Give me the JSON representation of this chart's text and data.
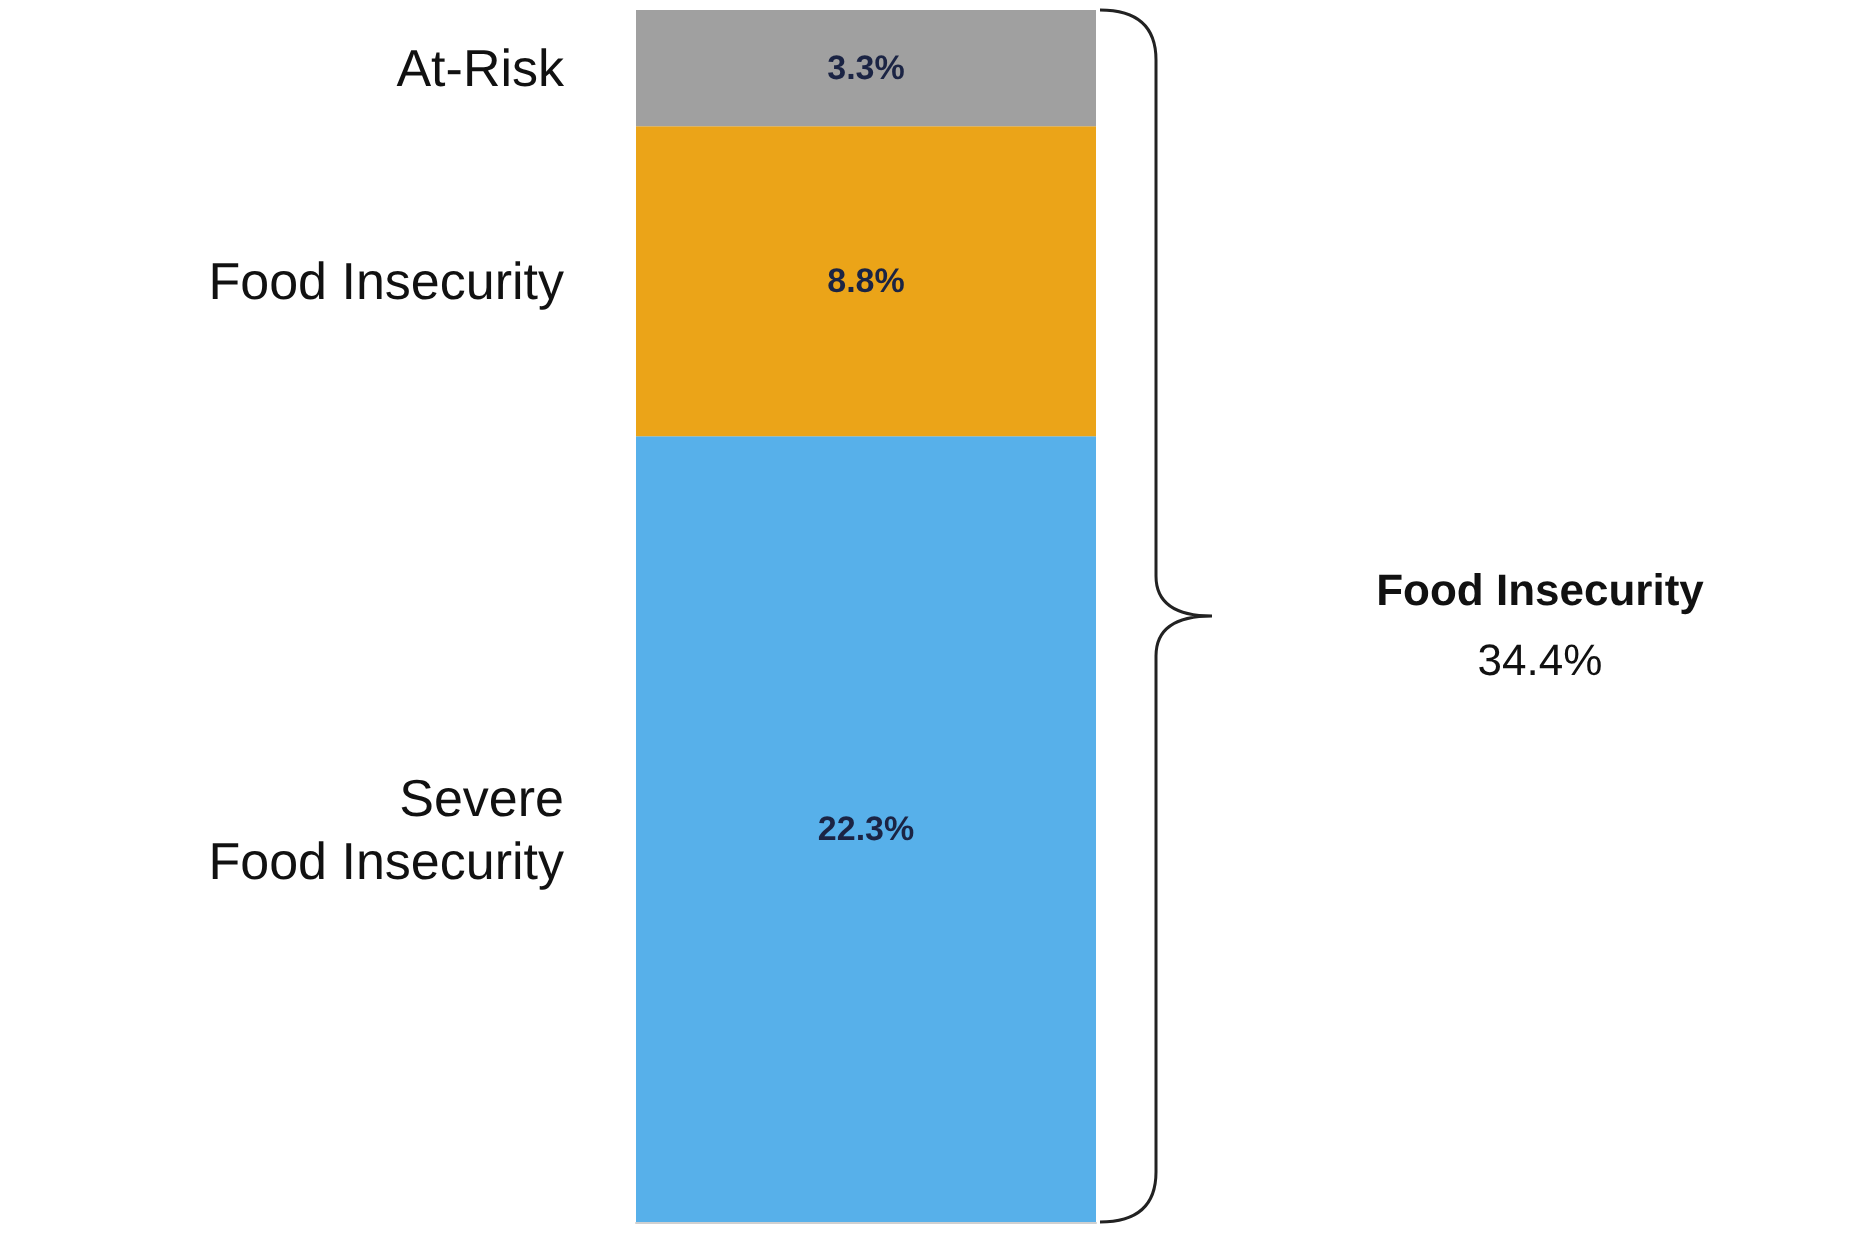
{
  "chart_data": {
    "type": "bar",
    "stacked": true,
    "categories": [
      null
    ],
    "series": [
      {
        "name": "Severe\nFood Insecurity",
        "color": "#57b0ea",
        "values": [
          22.3
        ],
        "value_labels": [
          "22.3%"
        ]
      },
      {
        "name": "Food Insecurity",
        "color": "#eba418",
        "values": [
          8.8
        ],
        "value_labels": [
          "8.8%"
        ]
      },
      {
        "name": "At-Risk",
        "color": "#a0a0a0",
        "values": [
          3.3
        ],
        "value_labels": [
          "3.3%"
        ]
      }
    ],
    "annotations": [
      "Food Insecurity",
      "34.4%"
    ],
    "legend": false
  }
}
